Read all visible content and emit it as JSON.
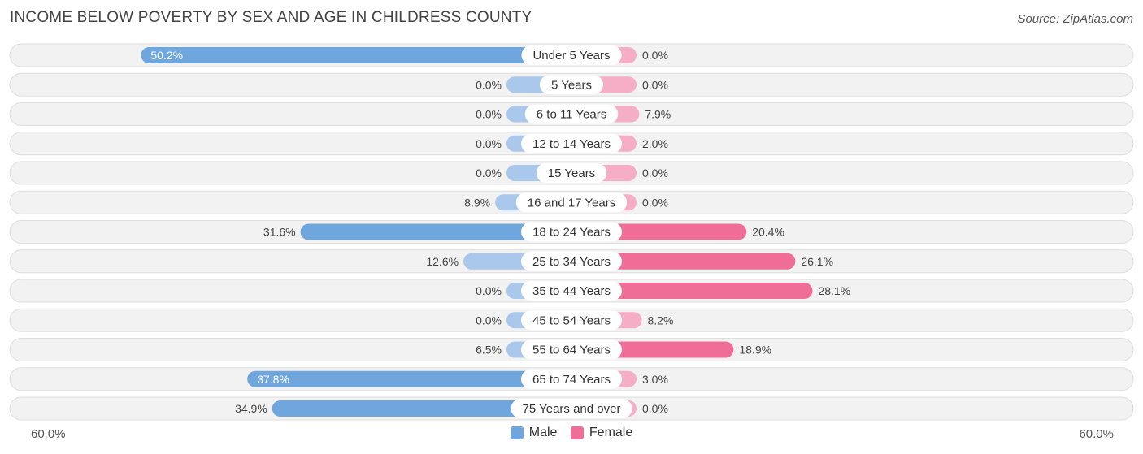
{
  "header": {
    "title": "INCOME BELOW POVERTY BY SEX AND AGE IN CHILDRESS COUNTY",
    "source": "Source: ZipAtlas.com"
  },
  "axis": {
    "left_label": "60.0%",
    "right_label": "60.0%"
  },
  "legend": {
    "male_label": "Male",
    "female_label": "Female"
  },
  "colors": {
    "male_strong": "#6fa6de",
    "male_light": "#a9c8ec",
    "female_strong": "#f06d97",
    "female_light": "#f6aec6",
    "row_bg": "#f2f2f2",
    "row_border": "#dedede"
  },
  "chart_data": {
    "type": "bar",
    "orientation": "horizontal-diverging",
    "title": "INCOME BELOW POVERTY BY SEX AND AGE IN CHILDRESS COUNTY",
    "categories": [
      "Under 5 Years",
      "5 Years",
      "6 to 11 Years",
      "12 to 14 Years",
      "15 Years",
      "16 and 17 Years",
      "18 to 24 Years",
      "25 to 34 Years",
      "35 to 44 Years",
      "45 to 54 Years",
      "55 to 64 Years",
      "65 to 74 Years",
      "75 Years and over"
    ],
    "series": [
      {
        "name": "Male",
        "values": [
          50.2,
          0.0,
          0.0,
          0.0,
          0.0,
          8.9,
          31.6,
          12.6,
          0.0,
          0.0,
          6.5,
          37.8,
          34.9
        ]
      },
      {
        "name": "Female",
        "values": [
          0.0,
          0.0,
          7.9,
          2.0,
          0.0,
          0.0,
          20.4,
          26.1,
          28.1,
          8.2,
          18.9,
          3.0,
          0.0
        ]
      }
    ],
    "value_labels": {
      "male": [
        "50.2%",
        "0.0%",
        "0.0%",
        "0.0%",
        "0.0%",
        "8.9%",
        "31.6%",
        "12.6%",
        "0.0%",
        "0.0%",
        "6.5%",
        "37.8%",
        "34.9%"
      ],
      "female": [
        "0.0%",
        "0.0%",
        "7.9%",
        "2.0%",
        "0.0%",
        "0.0%",
        "20.4%",
        "26.1%",
        "28.1%",
        "8.2%",
        "18.9%",
        "3.0%",
        "0.0%"
      ]
    },
    "xlim": [
      -60,
      60
    ],
    "legend_position": "bottom-center"
  }
}
